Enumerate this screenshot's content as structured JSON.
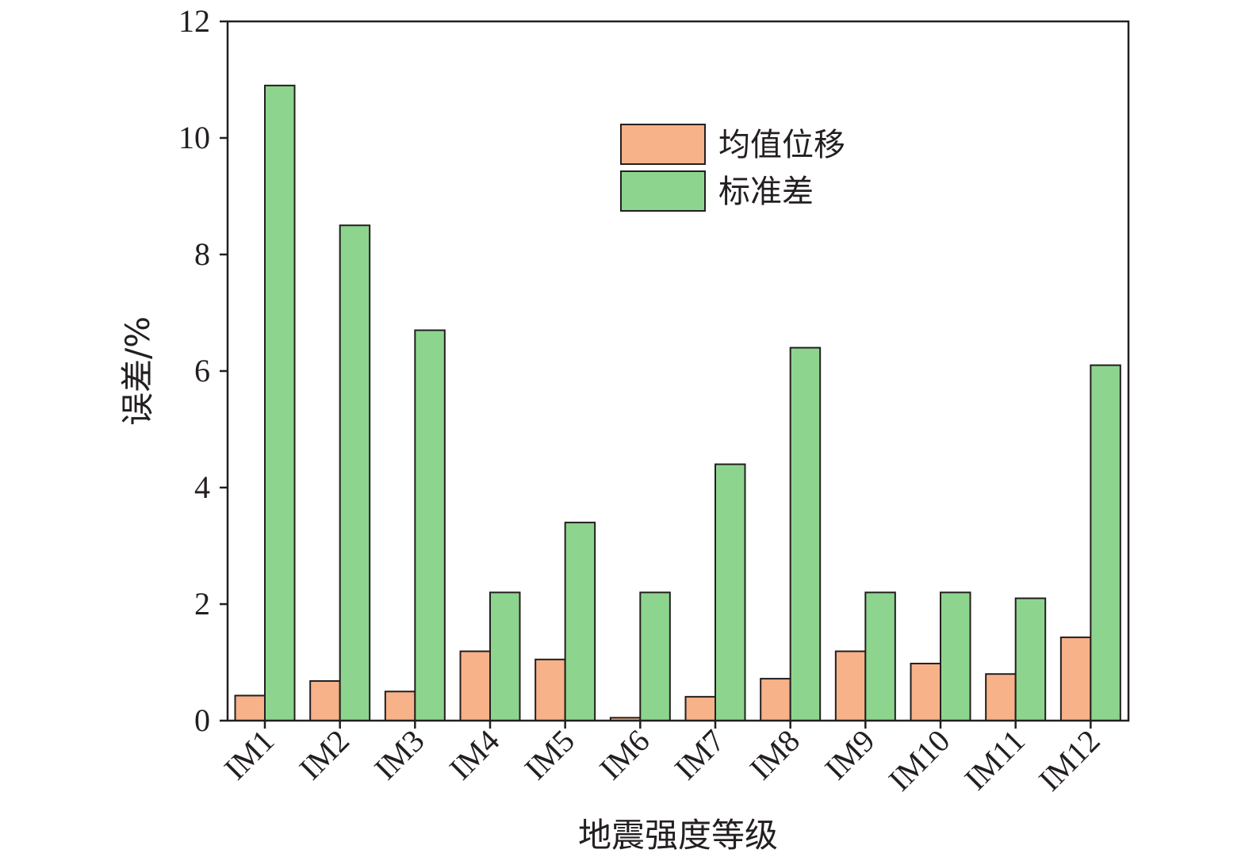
{
  "chart_data": {
    "type": "bar",
    "title": "",
    "xlabel": "地震强度等级",
    "ylabel": "误差/%",
    "ylim": [
      0,
      12
    ],
    "yticks": [
      0,
      2,
      4,
      6,
      8,
      10,
      12
    ],
    "categories": [
      "IM1",
      "IM2",
      "IM3",
      "IM4",
      "IM5",
      "IM6",
      "IM7",
      "IM8",
      "IM9",
      "IM10",
      "IM11",
      "IM12"
    ],
    "series": [
      {
        "name": "均值位移",
        "color": "#f7b289",
        "values": [
          0.43,
          0.68,
          0.5,
          1.19,
          1.05,
          0.05,
          0.41,
          0.72,
          1.19,
          0.98,
          0.8,
          1.43
        ]
      },
      {
        "name": "标准差",
        "color": "#8dd58e",
        "values": [
          10.9,
          8.5,
          6.7,
          2.2,
          3.4,
          2.2,
          4.4,
          6.4,
          2.2,
          2.2,
          2.1,
          6.1
        ]
      }
    ],
    "legend": "top-center",
    "grid": false
  }
}
